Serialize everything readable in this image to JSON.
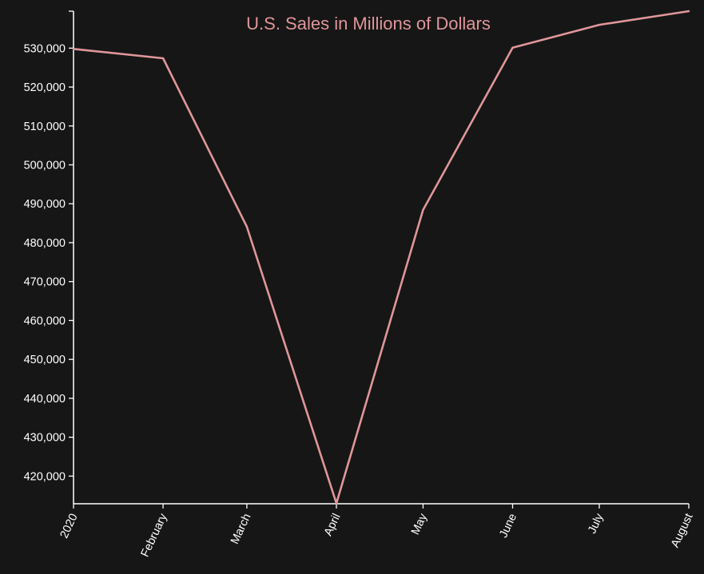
{
  "chart_data": {
    "type": "line",
    "title": "U.S. Sales in Millions of Dollars",
    "xlabel": "",
    "ylabel": "",
    "categories": [
      "2020",
      "February",
      "March",
      "April",
      "May",
      "June",
      "July",
      "August"
    ],
    "x_dates": [
      "2020-01",
      "2020-02",
      "2020-03",
      "2020-04",
      "2020-05",
      "2020-06",
      "2020-07",
      "2020-08"
    ],
    "series": [
      {
        "values": [
          529800,
          527400,
          484100,
          413000,
          488400,
          530100,
          536000,
          539500
        ]
      }
    ],
    "ylim": [
      412900,
      539500
    ],
    "y_ticks": [
      420000,
      430000,
      440000,
      450000,
      460000,
      470000,
      480000,
      490000,
      500000,
      510000,
      520000,
      530000
    ],
    "y_tick_labels": [
      "420,000",
      "430,000",
      "440,000",
      "450,000",
      "460,000",
      "470,000",
      "480,000",
      "490,000",
      "500,000",
      "510,000",
      "520,000",
      "530,000"
    ],
    "grid": false,
    "colors": {
      "background": "#161616",
      "line": "#e0969a",
      "title": "#e0969a",
      "axis": "#ffffff",
      "tick_text": "#ffffff"
    }
  }
}
